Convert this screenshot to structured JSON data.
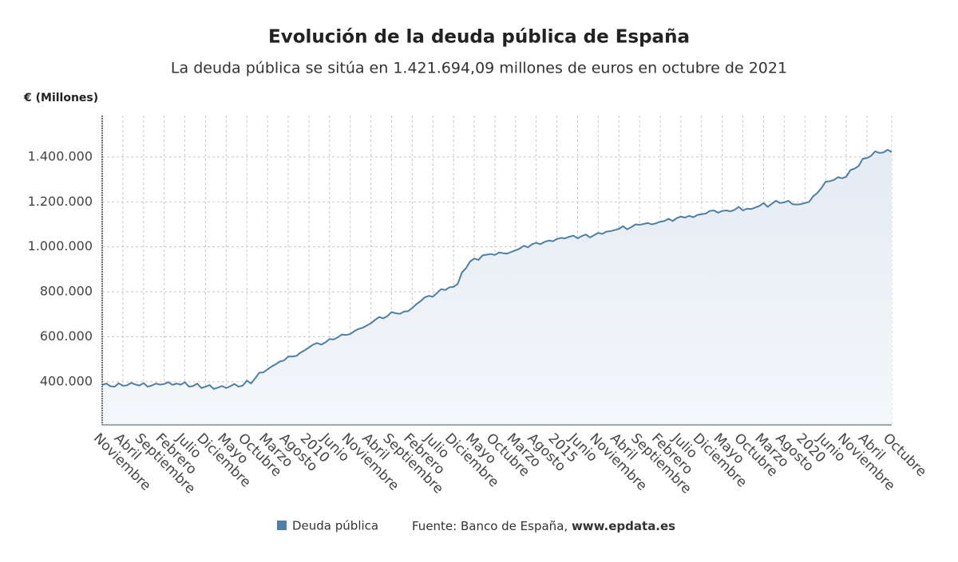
{
  "chart_data": {
    "type": "line",
    "title": "Evolución de la deuda pública de España",
    "subtitle": "La deuda pública se sitúa en 1.421.694,09 millones de euros en octubre de 2021",
    "y_axis_label": "€ (Millones)",
    "source_label": "Fuente: Banco de España,",
    "source_url": "www.epdata.es",
    "categories": [
      "Noviembre",
      null,
      null,
      null,
      null,
      "Abril",
      null,
      null,
      null,
      null,
      "Septiembre",
      null,
      null,
      null,
      null,
      "Febrero",
      null,
      null,
      null,
      null,
      "Julio",
      null,
      null,
      null,
      null,
      "Diciembre",
      null,
      null,
      null,
      null,
      "Mayo",
      null,
      null,
      null,
      null,
      "Octubre",
      null,
      null,
      null,
      null,
      "Marzo",
      null,
      null,
      null,
      null,
      "Agosto",
      null,
      null,
      null,
      null,
      "2010",
      null,
      null,
      null,
      null,
      "Junio",
      null,
      null,
      null,
      null,
      "Noviembre",
      null,
      null,
      null,
      null,
      "Abril",
      null,
      null,
      null,
      null,
      "Septiembre",
      null,
      null,
      null,
      null,
      "Febrero",
      null,
      null,
      null,
      null,
      "Julio",
      null,
      null,
      null,
      null,
      "Diciembre",
      null,
      null,
      null,
      null,
      "Mayo",
      null,
      null,
      null,
      null,
      "Octubre",
      null,
      null,
      null,
      null,
      "Marzo",
      null,
      null,
      null,
      null,
      "Agosto",
      null,
      null,
      null,
      null,
      "2015",
      null,
      null,
      null,
      null,
      "Junio",
      null,
      null,
      null,
      null,
      "Noviembre",
      null,
      null,
      null,
      null,
      "Abril",
      null,
      null,
      null,
      null,
      "Septiembre",
      null,
      null,
      null,
      null,
      "Febrero",
      null,
      null,
      null,
      null,
      "Julio",
      null,
      null,
      null,
      null,
      "Diciembre",
      null,
      null,
      null,
      null,
      "Mayo",
      null,
      null,
      null,
      null,
      "Octubre",
      null,
      null,
      null,
      null,
      "Marzo",
      null,
      null,
      null,
      null,
      "Agosto",
      null,
      null,
      null,
      null,
      "2020",
      null,
      null,
      null,
      null,
      "Junio",
      null,
      null,
      null,
      null,
      "Noviembre",
      null,
      null,
      null,
      null,
      "Abril",
      null,
      null,
      null,
      null,
      null,
      "Octubre"
    ],
    "series": [
      {
        "name": "Deuda pública",
        "color": "#4e7fa6",
        "values": [
          385000,
          392000,
          380000,
          378000,
          393000,
          382000,
          384000,
          395000,
          388000,
          383000,
          394000,
          378000,
          383000,
          392000,
          387000,
          390000,
          398000,
          386000,
          392000,
          387000,
          398000,
          378000,
          381000,
          392000,
          372000,
          378000,
          385000,
          368000,
          374000,
          381000,
          372000,
          380000,
          390000,
          378000,
          383000,
          405000,
          392000,
          415000,
          440000,
          442000,
          455000,
          468000,
          478000,
          490000,
          495000,
          512000,
          512000,
          515000,
          530000,
          540000,
          552000,
          565000,
          572000,
          565000,
          575000,
          590000,
          588000,
          598000,
          610000,
          608000,
          612000,
          625000,
          635000,
          640000,
          650000,
          660000,
          675000,
          688000,
          682000,
          692000,
          710000,
          705000,
          702000,
          712000,
          714000,
          728000,
          745000,
          758000,
          775000,
          782000,
          778000,
          795000,
          812000,
          808000,
          820000,
          822000,
          835000,
          885000,
          905000,
          935000,
          948000,
          942000,
          962000,
          965000,
          968000,
          964000,
          975000,
          972000,
          970000,
          978000,
          985000,
          992000,
          1005000,
          998000,
          1012000,
          1018000,
          1012000,
          1022000,
          1028000,
          1025000,
          1035000,
          1040000,
          1038000,
          1045000,
          1050000,
          1038000,
          1048000,
          1055000,
          1042000,
          1052000,
          1062000,
          1058000,
          1068000,
          1070000,
          1075000,
          1080000,
          1092000,
          1078000,
          1088000,
          1100000,
          1098000,
          1102000,
          1106000,
          1100000,
          1105000,
          1112000,
          1115000,
          1125000,
          1115000,
          1128000,
          1135000,
          1130000,
          1138000,
          1132000,
          1142000,
          1145000,
          1148000,
          1160000,
          1162000,
          1152000,
          1160000,
          1162000,
          1158000,
          1165000,
          1178000,
          1162000,
          1170000,
          1168000,
          1175000,
          1182000,
          1195000,
          1178000,
          1192000,
          1205000,
          1195000,
          1198000,
          1205000,
          1190000,
          1188000,
          1190000,
          1195000,
          1200000,
          1225000,
          1240000,
          1262000,
          1290000,
          1292000,
          1298000,
          1310000,
          1305000,
          1312000,
          1342000,
          1348000,
          1360000,
          1392000,
          1395000,
          1405000,
          1425000,
          1418000,
          1420000,
          1432000,
          1421694.09
        ]
      }
    ],
    "ylim": [
      208000,
      1584000
    ],
    "yticks": [
      {
        "value": 400000,
        "label": "400.000"
      },
      {
        "value": 600000,
        "label": "600.000"
      },
      {
        "value": 800000,
        "label": "800.000"
      },
      {
        "value": 1000000,
        "label": "1.000.000"
      },
      {
        "value": 1200000,
        "label": "1.200.000"
      },
      {
        "value": 1400000,
        "label": "1.400.000"
      }
    ],
    "grid": true,
    "legend": "bottom"
  }
}
